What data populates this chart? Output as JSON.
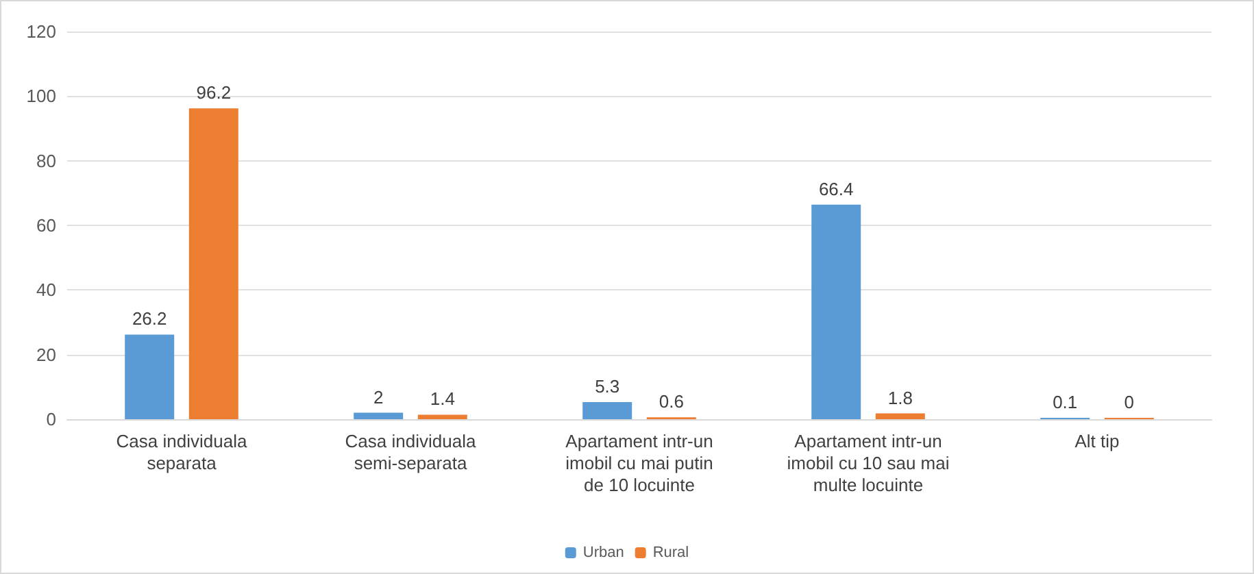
{
  "chart_data": {
    "type": "bar",
    "categories": [
      "Casa individuala\nseparata",
      "Casa individuala\nsemi-separata",
      "Apartament intr-un\nimobil cu mai putin\nde 10 locuinte",
      "Apartament intr-un\nimobil cu 10 sau mai\nmulte locuinte",
      "Alt tip"
    ],
    "series": [
      {
        "name": "Urban",
        "color": "#5b9bd5",
        "values": [
          26.2,
          2,
          5.3,
          66.4,
          0.1
        ]
      },
      {
        "name": "Rural",
        "color": "#ed7d31",
        "values": [
          96.2,
          1.4,
          0.6,
          1.8,
          0
        ]
      }
    ],
    "ylim": [
      0,
      120
    ],
    "yticks": [
      0,
      20,
      40,
      60,
      80,
      100,
      120
    ],
    "grid": "y",
    "legend": "bottom",
    "data_labels": true
  }
}
